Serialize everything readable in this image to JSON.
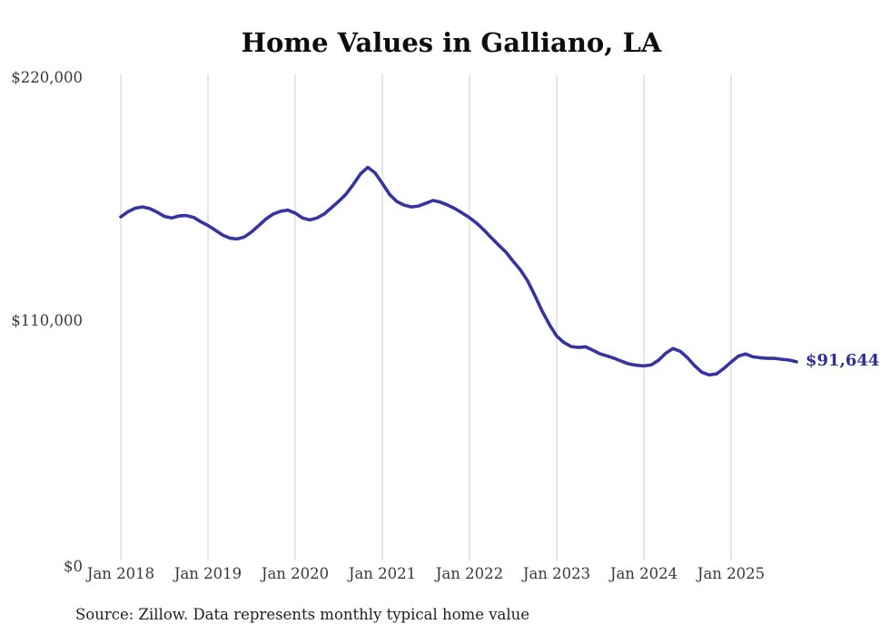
{
  "title": "Home Values in Galliano, LA",
  "source_note": "Source: Zillow. Data represents monthly typical home value",
  "colors": {
    "line": "#3534a0",
    "end_label": "#2f2f99",
    "gridline": "#cccccc",
    "title": "#0d0d0d",
    "axis_text": "#3a3a3a"
  },
  "y_axis": {
    "ticks": [
      "$220,000",
      "$110,000",
      "$0"
    ]
  },
  "x_axis": {
    "ticks": [
      "Jan 2018",
      "Jan 2019",
      "Jan 2020",
      "Jan 2021",
      "Jan 2022",
      "Jan 2023",
      "Jan 2024",
      "Jan 2025"
    ]
  },
  "chart_data": {
    "type": "line",
    "title": "Home Values in Galliano, LA",
    "xlabel": "",
    "ylabel": "",
    "ylim": [
      0,
      220000
    ],
    "grid": "vertical-only",
    "legend": "none",
    "line_color": "#3534a0",
    "y_tick_labels": [
      "$0",
      "$110,000",
      "$220,000"
    ],
    "y_tick_values": [
      0,
      110000,
      220000
    ],
    "x_tick_labels": [
      "Jan 2018",
      "Jan 2019",
      "Jan 2020",
      "Jan 2021",
      "Jan 2022",
      "Jan 2023",
      "Jan 2024",
      "Jan 2025"
    ],
    "final_value": 91644,
    "final_value_label": "$91,644",
    "x": [
      "2018-01",
      "2018-02",
      "2018-03",
      "2018-04",
      "2018-05",
      "2018-06",
      "2018-07",
      "2018-08",
      "2018-09",
      "2018-10",
      "2018-11",
      "2018-12",
      "2019-01",
      "2019-02",
      "2019-03",
      "2019-04",
      "2019-05",
      "2019-06",
      "2019-07",
      "2019-08",
      "2019-09",
      "2019-10",
      "2019-11",
      "2019-12",
      "2020-01",
      "2020-02",
      "2020-03",
      "2020-04",
      "2020-05",
      "2020-06",
      "2020-07",
      "2020-08",
      "2020-09",
      "2020-10",
      "2020-11",
      "2020-12",
      "2021-01",
      "2021-02",
      "2021-03",
      "2021-04",
      "2021-05",
      "2021-06",
      "2021-07",
      "2021-08",
      "2021-09",
      "2021-10",
      "2021-11",
      "2021-12",
      "2022-01",
      "2022-02",
      "2022-03",
      "2022-04",
      "2022-05",
      "2022-06",
      "2022-07",
      "2022-08",
      "2022-09",
      "2022-10",
      "2022-11",
      "2022-12",
      "2023-01",
      "2023-02",
      "2023-03",
      "2023-04",
      "2023-05",
      "2023-06",
      "2023-07",
      "2023-08",
      "2023-09",
      "2023-10",
      "2023-11",
      "2023-12",
      "2024-01",
      "2024-02",
      "2024-03",
      "2024-04",
      "2024-05",
      "2024-06",
      "2024-07",
      "2024-08",
      "2024-09",
      "2024-10",
      "2024-11",
      "2024-12",
      "2025-01",
      "2025-02",
      "2025-03",
      "2025-04",
      "2025-05",
      "2025-06",
      "2025-07",
      "2025-08",
      "2025-09",
      "2025-10"
    ],
    "values": [
      157000,
      159300,
      160900,
      161500,
      160700,
      159100,
      157200,
      156500,
      157400,
      157600,
      156800,
      154800,
      153100,
      151000,
      148800,
      147400,
      147000,
      147900,
      150200,
      153100,
      156100,
      158300,
      159500,
      160000,
      158700,
      156500,
      155600,
      156500,
      158300,
      161100,
      164000,
      167200,
      171600,
      176400,
      179300,
      176800,
      172100,
      167100,
      163900,
      162300,
      161500,
      161900,
      163100,
      164400,
      163600,
      162300,
      160700,
      158700,
      156600,
      154100,
      151000,
      147600,
      144300,
      141100,
      137000,
      133100,
      128100,
      121500,
      114500,
      108400,
      103200,
      100300,
      98500,
      98100,
      98400,
      96800,
      95200,
      94200,
      93100,
      91800,
      90600,
      90100,
      89800,
      90200,
      92300,
      95500,
      97600,
      96400,
      93500,
      89800,
      86900,
      85700,
      86200,
      88600,
      91500,
      94200,
      95200,
      93900,
      93500,
      93200,
      93200,
      92800,
      92400,
      91644
    ]
  }
}
